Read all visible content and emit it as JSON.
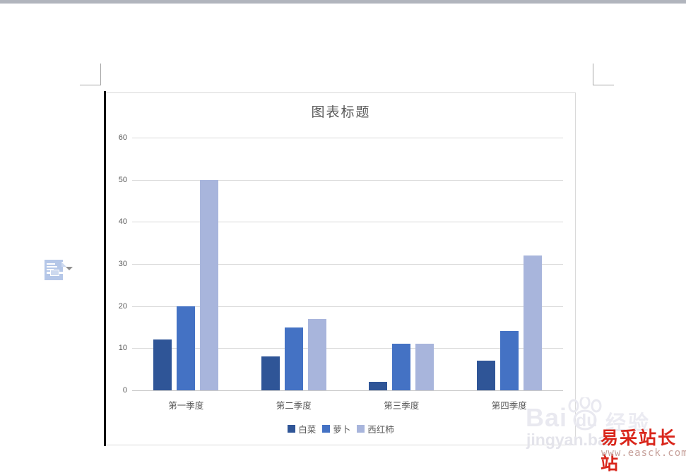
{
  "page": {
    "top_bar_color": "#b1b5bd",
    "crop_mark_color": "#a6a6a6"
  },
  "layout_options": {
    "button": "layout-options",
    "dropdown": "chevron-down"
  },
  "chart_data": {
    "type": "bar",
    "title": "图表标题",
    "title_color": "#595959",
    "categories": [
      "第一季度",
      "第二季度",
      "第三季度",
      "第四季度"
    ],
    "series": [
      {
        "name": "白菜",
        "color": "#2F5597",
        "values": [
          12,
          8,
          2,
          7
        ]
      },
      {
        "name": "萝卜",
        "color": "#4472C4",
        "values": [
          20,
          15,
          11,
          14
        ]
      },
      {
        "name": "西红柿",
        "color": "#A8B5DC",
        "values": [
          50,
          17,
          11,
          32
        ]
      }
    ],
    "ylim": [
      0,
      60
    ],
    "yticks": [
      0,
      10,
      20,
      30,
      40,
      50,
      60
    ],
    "grid": true,
    "legend_position": "bottom",
    "axis_label_color": "#595959",
    "gridline_color": "#d9d9d9"
  },
  "watermark": {
    "brand_text": "Bai",
    "brand_text2": "du",
    "brand_suffix": "经验",
    "brand_url": "jingyan.bai",
    "site_name": "易采站长站",
    "site_name_color": "#d9261b",
    "site_url": "www.easck.com",
    "site_url_color": "#c6a09a"
  }
}
